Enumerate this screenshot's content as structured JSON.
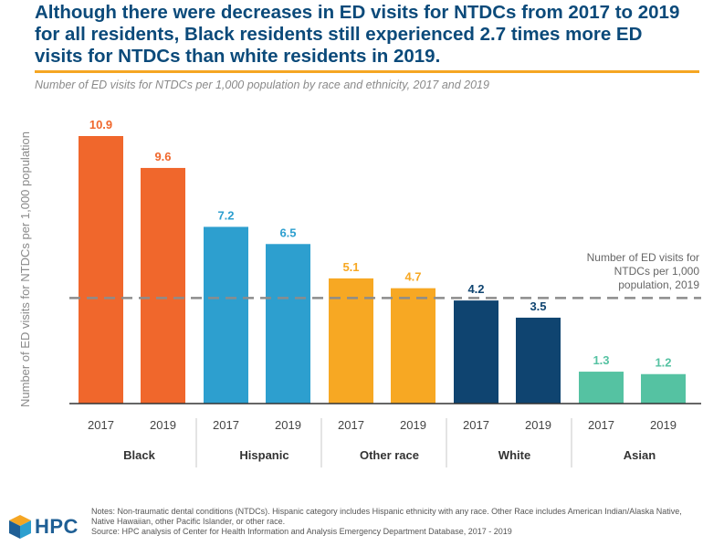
{
  "header": {
    "title": "Although there were decreases in ED visits for NTDCs from 2017 to 2019 for all residents, Black residents still experienced 2.7 times more ED visits for NTDCs than white residents in 2019.",
    "subtitle": "Number of ED visits for NTDCs per 1,000 population by race and ethnicity, 2017 and 2019"
  },
  "colors": {
    "accent_rule": "#f5a623",
    "title": "#0b4a7a",
    "reference_line": "#8c8c8c"
  },
  "chart_data": {
    "type": "bar",
    "ylabel": "Number of ED visits for NTDCs per 1,000 population",
    "ylim": [
      0,
      12
    ],
    "grid": false,
    "groups": [
      {
        "name": "Black",
        "color": "#f0672c",
        "bars": [
          {
            "x": "2017",
            "value": 10.9,
            "label": "10.9"
          },
          {
            "x": "2019",
            "value": 9.6,
            "label": "9.6"
          }
        ]
      },
      {
        "name": "Hispanic",
        "color": "#2d9fcf",
        "bars": [
          {
            "x": "2017",
            "value": 7.2,
            "label": "7.2"
          },
          {
            "x": "2019",
            "value": 6.5,
            "label": "6.5"
          }
        ]
      },
      {
        "name": "Other race",
        "color": "#f7a823",
        "bars": [
          {
            "x": "2017",
            "value": 5.1,
            "label": "5.1"
          },
          {
            "x": "2019",
            "value": 4.7,
            "label": "4.7"
          }
        ]
      },
      {
        "name": "White",
        "color": "#0f4470",
        "bars": [
          {
            "x": "2017",
            "value": 4.2,
            "label": "4.2"
          },
          {
            "x": "2019",
            "value": 3.5,
            "label": "3.5"
          }
        ]
      },
      {
        "name": "Asian",
        "color": "#55c2a2",
        "bars": [
          {
            "x": "2017",
            "value": 1.3,
            "label": "1.3"
          },
          {
            "x": "2019",
            "value": 1.2,
            "label": "1.2"
          }
        ]
      }
    ],
    "reference_line": {
      "value": 4.3,
      "style": "dashed",
      "label_lines": [
        "Number of ED visits for",
        "NTDCs per 1,000",
        "population, 2019"
      ]
    }
  },
  "footer": {
    "notes_line1": "Notes: Non-traumatic dental conditions (NTDCs). Hispanic category includes Hispanic ethnicity with any race. Other Race includes American Indian/Alaska Native,",
    "notes_line2": "Native Hawaiian, other Pacific Islander, or other race.",
    "source": "Source: HPC analysis of Center for Health Information and Analysis Emergency Department Database, 2017 - 2019",
    "logo_text": "HPC",
    "logo_icon": "hpc-cube-logo-icon"
  }
}
